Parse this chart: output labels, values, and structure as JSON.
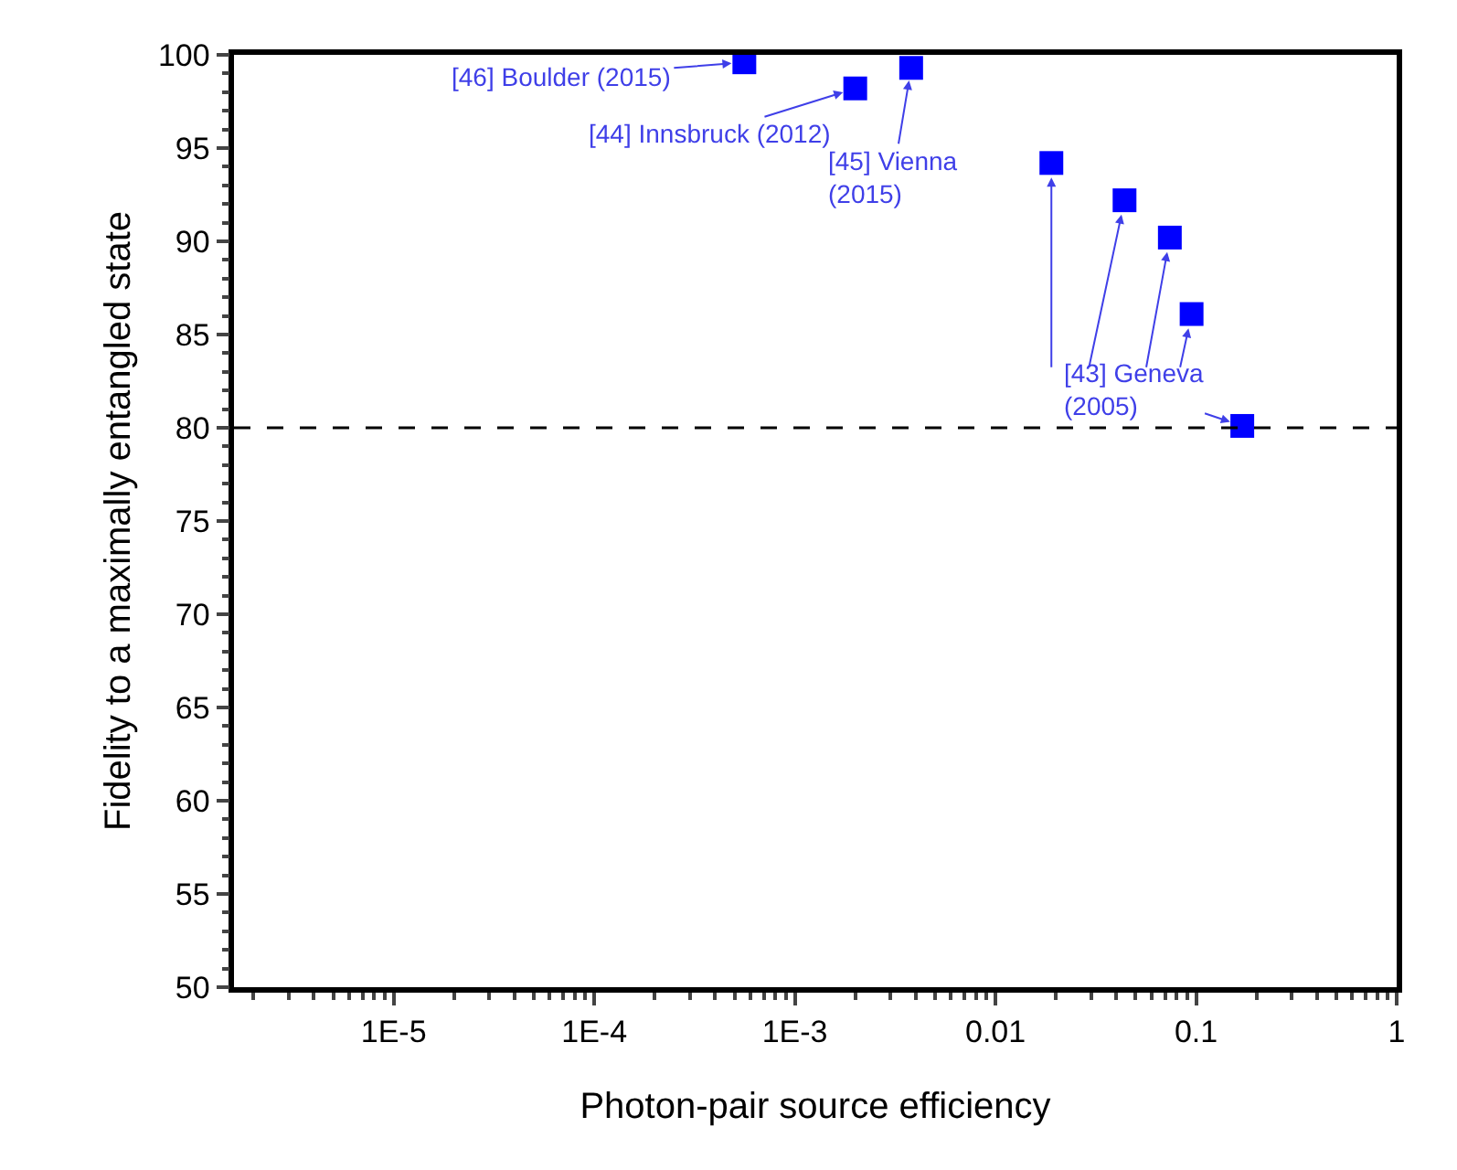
{
  "chart_data": {
    "type": "scatter",
    "xlabel": "Photon-pair source efficiency",
    "ylabel": "Fidelity to a maximally entangled state",
    "log": "x",
    "marker": "square",
    "xlim": [
      1.6e-06,
      1
    ],
    "xticks": [
      {
        "value": 1e-05,
        "label": "1E-5"
      },
      {
        "value": 0.0001,
        "label": "1E-4"
      },
      {
        "value": 0.001,
        "label": "1E-3"
      },
      0.01,
      0.1,
      1
    ],
    "ylim": [
      50,
      100
    ],
    "yticks": [
      50,
      55,
      60,
      65,
      70,
      75,
      80,
      85,
      90,
      95,
      100
    ],
    "series": [
      {
        "color": "#0000ff",
        "x": [
          0.00056,
          0.002,
          0.0038,
          0.019,
          0.044,
          0.074,
          0.095,
          0.17
        ],
        "values": [
          99.6,
          98.2,
          99.3,
          94.2,
          92.2,
          90.2,
          86.1,
          80.1
        ]
      }
    ],
    "ref_lines": [
      {
        "axis": "y",
        "value": 80,
        "color": "#000000",
        "line_style": "dashed"
      }
    ],
    "annotations": [
      {
        "text": "[46] Boulder (2015)",
        "x": 0.00056,
        "y": 99.6
      },
      {
        "text": "[44] Innsbruck (2012)",
        "x": 0.002,
        "y": 98.2
      },
      {
        "text": "[45] Vienna\n(2015)",
        "x": 0.0038,
        "y": 99.3
      },
      {
        "text": "[43] Geneva\n(2005)",
        "x": 0.17,
        "y": 80.1
      }
    ]
  }
}
